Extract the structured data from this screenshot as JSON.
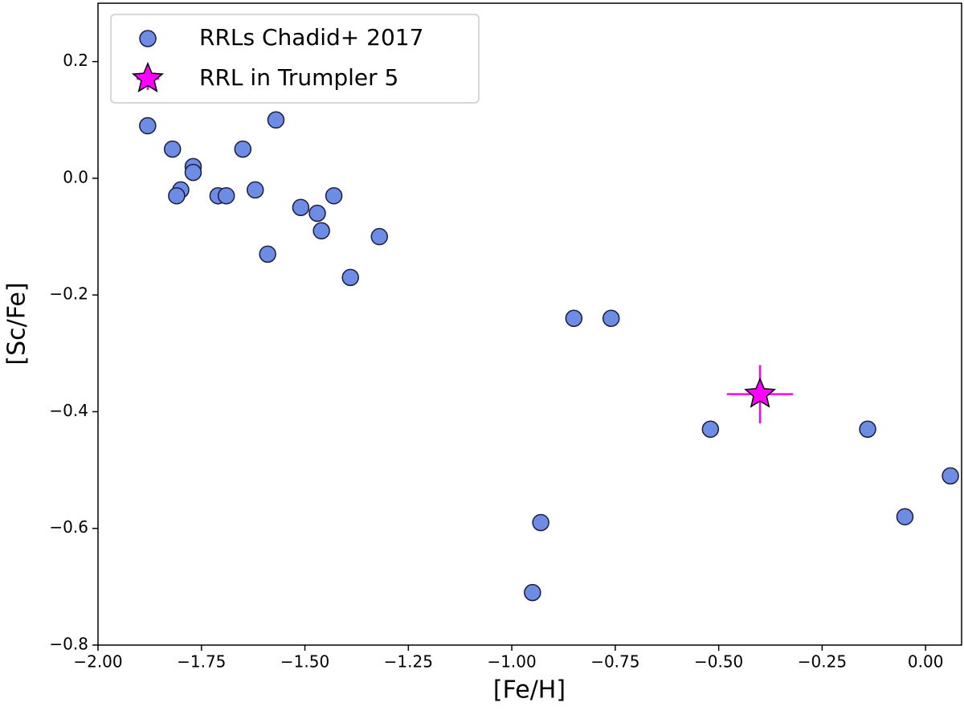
{
  "chart_data": {
    "type": "scatter",
    "xlabel": "[Fe/H]",
    "ylabel": "[Sc/Fe]",
    "xlim": [
      -2.0,
      0.087
    ],
    "ylim": [
      -0.8,
      0.3
    ],
    "xticks": [
      {
        "value": -2.0,
        "label": "−2.00"
      },
      {
        "value": -1.75,
        "label": "−1.75"
      },
      {
        "value": -1.5,
        "label": "−1.50"
      },
      {
        "value": -1.25,
        "label": "−1.25"
      },
      {
        "value": -1.0,
        "label": "−1.00"
      },
      {
        "value": -0.75,
        "label": "−0.75"
      },
      {
        "value": -0.5,
        "label": "−0.50"
      },
      {
        "value": -0.25,
        "label": "−0.25"
      },
      {
        "value": 0.0,
        "label": "0.00"
      }
    ],
    "yticks": [
      {
        "value": -0.8,
        "label": "−0.8"
      },
      {
        "value": -0.6,
        "label": "−0.6"
      },
      {
        "value": -0.4,
        "label": "−0.4"
      },
      {
        "value": -0.2,
        "label": "−0.2"
      },
      {
        "value": 0.0,
        "label": "0.0"
      },
      0.2
    ],
    "legend": "upper left",
    "series": [
      {
        "name": "RRLs Chadid+ 2017",
        "color": "#6d8ce3",
        "marker": "circle",
        "x": [
          -1.88,
          -1.82,
          -1.77,
          -1.77,
          -1.8,
          -1.81,
          -1.71,
          -1.69,
          -1.65,
          -1.62,
          -1.57,
          -1.59,
          -1.51,
          -1.47,
          -1.46,
          -1.43,
          -1.39,
          -1.32,
          -0.85,
          -0.76,
          -0.93,
          -0.95,
          -0.52,
          -0.14,
          -0.05,
          0.06
        ],
        "y": [
          0.09,
          0.05,
          0.02,
          0.01,
          -0.02,
          -0.03,
          -0.03,
          -0.03,
          0.05,
          -0.02,
          0.1,
          -0.13,
          -0.05,
          -0.06,
          -0.09,
          -0.03,
          -0.17,
          -0.1,
          -0.24,
          -0.24,
          -0.59,
          -0.71,
          -0.43,
          -0.43,
          -0.58,
          -0.51
        ]
      },
      {
        "name": "RRL in Trumpler 5",
        "color": "#ff00ff",
        "marker": "star",
        "x": [
          -0.4
        ],
        "y": [
          -0.37
        ],
        "xerr": [
          0.08
        ],
        "yerr": [
          0.05
        ]
      }
    ]
  }
}
